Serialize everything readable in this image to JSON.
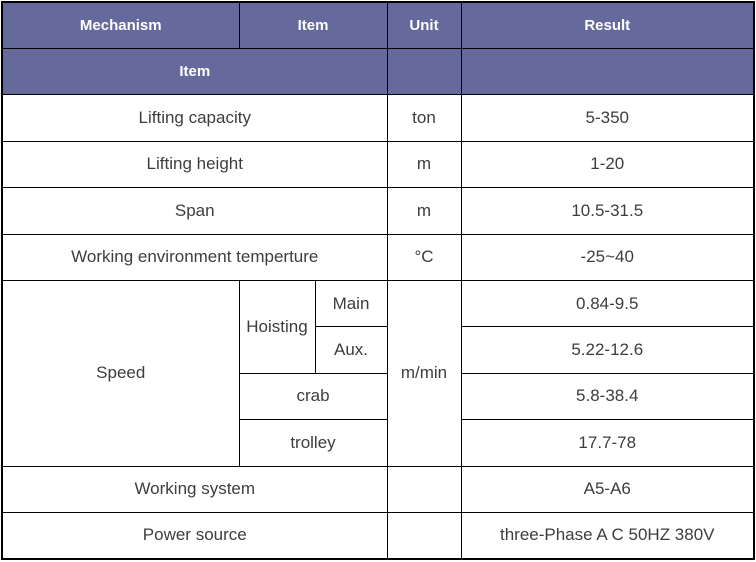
{
  "colors": {
    "header_bg": "#65699b",
    "header_text": "#ffffff",
    "body_text": "#3d3d3d",
    "border": "#000000"
  },
  "header": {
    "row1": {
      "mechanism": "Mechanism",
      "item": "Item",
      "unit": "Unit",
      "result": "Result"
    },
    "row2": {
      "item": "Item",
      "unit": "",
      "result": ""
    }
  },
  "rows": {
    "lifting_capacity": {
      "label": "Lifting capacity",
      "unit": "ton",
      "result": "5-350"
    },
    "lifting_height": {
      "label": "Lifting height",
      "unit": "m",
      "result": "1-20"
    },
    "span": {
      "label": "Span",
      "unit": "m",
      "result": "10.5-31.5"
    },
    "working_env_temperature": {
      "label": "Working environment temperture",
      "unit": "°C",
      "result": "-25~40"
    },
    "working_system": {
      "label": "Working system",
      "unit": "",
      "result": "A5-A6"
    },
    "power_source": {
      "label": "Power source",
      "unit": "",
      "result": "three-Phase A C 50HZ 380V"
    }
  },
  "speed": {
    "label": "Speed",
    "unit": "m/min",
    "hoisting": {
      "label": "Hoisting",
      "main": {
        "label": "Main",
        "result": "0.84-9.5"
      },
      "aux": {
        "label": "Aux.",
        "result": "5.22-12.6"
      }
    },
    "crab": {
      "label": "crab",
      "result": "5.8-38.4"
    },
    "trolley": {
      "label": "trolley",
      "result": "17.7-78"
    }
  }
}
